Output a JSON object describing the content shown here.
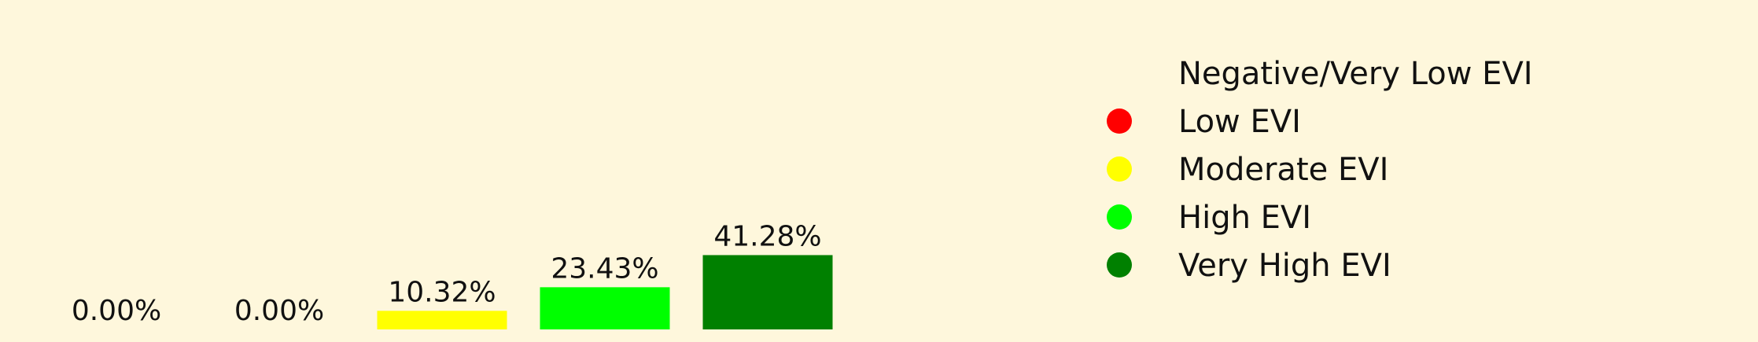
{
  "chart_data": {
    "type": "bar",
    "categories": [
      "Negative/Very Low EVI",
      "Low EVI",
      "Moderate EVI",
      "High EVI",
      "Very High EVI"
    ],
    "values": [
      0.0,
      0.0,
      10.32,
      23.43,
      41.28
    ],
    "value_labels": [
      "0.00%",
      "0.00%",
      "10.32%",
      "23.43%",
      "41.28%"
    ],
    "colors": [
      "#fef7dc",
      "#ff0000",
      "#ffff00",
      "#00ff00",
      "#008000"
    ],
    "title": "",
    "xlabel": "",
    "ylabel": "",
    "axes_visible": false,
    "grid": false,
    "legend": {
      "placement": "right",
      "entries": [
        {
          "label": "Negative/Very Low EVI",
          "color": "#fef7dc"
        },
        {
          "label": "Low EVI",
          "color": "#ff0000"
        },
        {
          "label": "Moderate EVI",
          "color": "#ffff00"
        },
        {
          "label": "High EVI",
          "color": "#00ff00"
        },
        {
          "label": "Very High EVI",
          "color": "#008000"
        }
      ]
    }
  }
}
